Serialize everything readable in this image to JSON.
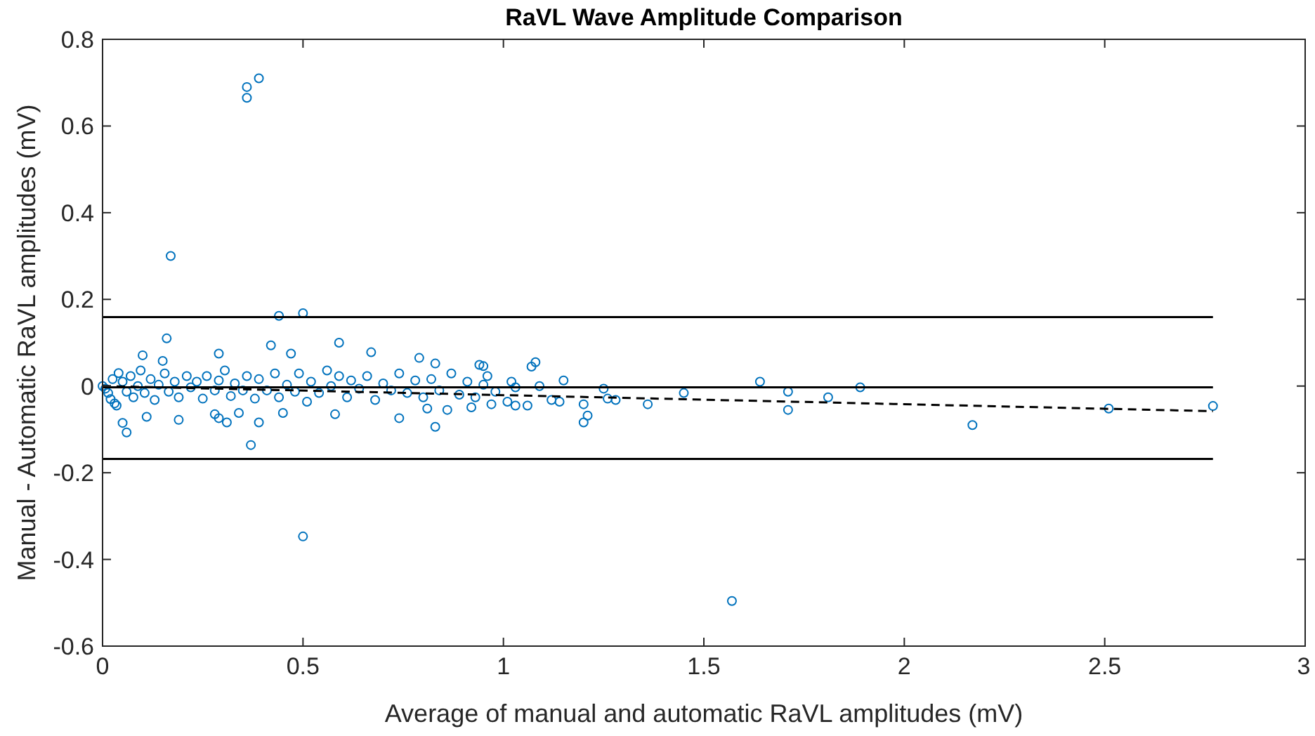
{
  "chart_data": {
    "type": "scatter",
    "title": "RaVL Wave Amplitude Comparison",
    "xlabel": "Average of manual and automatic RaVL amplitudes (mV)",
    "ylabel": "Manual - Automatic RaVL amplitudes (mV)",
    "xlim": [
      0,
      3
    ],
    "xticks": [
      0,
      0.5,
      1,
      1.5,
      2,
      2.5,
      3
    ],
    "ylim": [
      -0.6,
      0.8
    ],
    "yticks": [
      -0.6,
      -0.4,
      -0.2,
      0,
      0.2,
      0.4,
      0.6,
      0.8
    ],
    "grid": false,
    "series": [
      {
        "marker": "circle",
        "color": "#0072bd",
        "x": [
          0.36,
          0.36,
          0.39,
          0.17,
          0.5,
          1.57,
          0.5,
          0.44,
          0.16,
          0.37,
          2.17,
          2.51,
          2.77,
          1.64,
          1.71,
          1.71,
          1.81,
          1.89,
          1.36,
          1.45,
          0.94,
          0.96,
          0.95,
          1.07,
          1.08,
          1.03,
          1.09,
          1.01,
          1.06,
          1.14,
          1.15,
          1.12,
          1.2,
          1.21,
          1.2,
          1.25,
          1.26,
          1.28,
          1.02,
          1.03,
          0.1,
          0.15,
          0.29,
          0.42,
          0.47,
          0.59,
          0.67,
          0.79,
          0.83,
          0.95,
          0.05,
          0.06,
          0.11,
          0.19,
          0.28,
          0.29,
          0.31,
          0.34,
          0.39,
          0.45,
          0.58,
          0.74,
          0.83,
          0.81,
          0.86,
          0.92,
          0.97,
          0,
          0.007,
          0.014,
          0.02,
          0.03,
          0.035,
          0.025,
          0.04,
          0.05,
          0.06,
          0.07,
          0.077,
          0.088,
          0.095,
          0.105,
          0.12,
          0.13,
          0.14,
          0.155,
          0.165,
          0.18,
          0.19,
          0.21,
          0.22,
          0.235,
          0.25,
          0.26,
          0.28,
          0.29,
          0.305,
          0.32,
          0.33,
          0.35,
          0.36,
          0.38,
          0.39,
          0.41,
          0.43,
          0.44,
          0.46,
          0.48,
          0.49,
          0.51,
          0.52,
          0.54,
          0.56,
          0.57,
          0.59,
          0.61,
          0.62,
          0.64,
          0.66,
          0.68,
          0.7,
          0.72,
          0.74,
          0.76,
          0.78,
          0.8,
          0.82,
          0.84,
          0.87,
          0.89,
          0.91,
          0.93,
          0.98
        ],
        "values": [
          0.69,
          0.665,
          0.71,
          0.3,
          -0.347,
          -0.496,
          0.168,
          0.162,
          0.11,
          -0.136,
          -0.09,
          -0.052,
          -0.046,
          0.01,
          -0.013,
          -0.055,
          -0.026,
          -0.003,
          -0.042,
          -0.016,
          0.049,
          0.023,
          0.003,
          0.045,
          0.055,
          -0.003,
          0,
          -0.036,
          -0.045,
          -0.036,
          0.013,
          -0.032,
          -0.042,
          -0.068,
          -0.084,
          -0.006,
          -0.029,
          -0.032,
          0.01,
          -0.045,
          0.071,
          0.058,
          0.075,
          0.094,
          0.075,
          0.1,
          0.078,
          0.065,
          0.052,
          0.046,
          -0.085,
          -0.107,
          -0.071,
          -0.078,
          -0.065,
          -0.074,
          -0.084,
          -0.062,
          -0.084,
          -0.062,
          -0.065,
          -0.074,
          -0.094,
          -0.052,
          -0.055,
          -0.049,
          -0.042,
          0,
          -0.006,
          -0.016,
          -0.03,
          -0.04,
          -0.045,
          0.016,
          0.03,
          0.01,
          -0.013,
          0.023,
          -0.026,
          0,
          0.036,
          -0.016,
          0.016,
          -0.032,
          0.003,
          0.029,
          -0.013,
          0.01,
          -0.026,
          0.023,
          -0.003,
          0.01,
          -0.029,
          0.023,
          -0.01,
          0.013,
          0.036,
          -0.023,
          0.006,
          -0.01,
          0.023,
          -0.029,
          0.016,
          -0.01,
          0.029,
          -0.026,
          0.003,
          -0.013,
          0.029,
          -0.036,
          0.01,
          -0.016,
          0.036,
          0,
          0.023,
          -0.026,
          0.013,
          -0.006,
          0.023,
          -0.032,
          0.006,
          -0.01,
          0.029,
          -0.016,
          0.013,
          -0.026,
          0.016,
          -0.01,
          0.029,
          -0.02,
          0.01,
          -0.026,
          -0.013
        ]
      },
      {
        "type": "line",
        "color": "#000000",
        "line_style": "solid",
        "x": [
          0,
          2.77
        ],
        "values": [
          0.159,
          0.159
        ]
      },
      {
        "type": "line",
        "color": "#000000",
        "line_style": "solid",
        "x": [
          0,
          2.77
        ],
        "values": [
          -0.003,
          -0.003
        ]
      },
      {
        "type": "line",
        "color": "#000000",
        "line_style": "solid",
        "x": [
          0,
          2.77
        ],
        "values": [
          -0.168,
          -0.168
        ]
      },
      {
        "type": "line",
        "color": "#000000",
        "line_style": "dashed",
        "x": [
          0,
          2.77
        ],
        "values": [
          0,
          -0.058
        ]
      }
    ]
  }
}
